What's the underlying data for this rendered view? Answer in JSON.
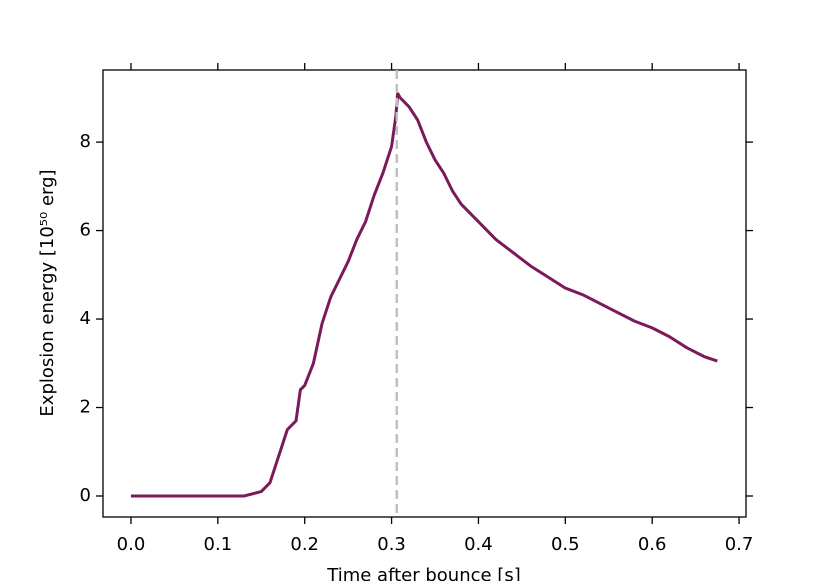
{
  "chart_data": {
    "type": "line",
    "xlabel": "Time after bounce [s]",
    "ylabel": "Explosion energy [10⁵⁰ erg]",
    "x": [
      0,
      0.05,
      0.1,
      0.13,
      0.15,
      0.16,
      0.17,
      0.18,
      0.19,
      0.195,
      0.2,
      0.21,
      0.22,
      0.23,
      0.24,
      0.25,
      0.26,
      0.27,
      0.28,
      0.29,
      0.3,
      0.305,
      0.307,
      0.31,
      0.32,
      0.33,
      0.34,
      0.35,
      0.36,
      0.37,
      0.38,
      0.4,
      0.42,
      0.44,
      0.46,
      0.48,
      0.5,
      0.52,
      0.54,
      0.56,
      0.58,
      0.6,
      0.62,
      0.64,
      0.66,
      0.675
    ],
    "series": [
      {
        "color": "#7b1a5a",
        "values": [
          0,
          0,
          0,
          0,
          0.1,
          0.3,
          0.9,
          1.5,
          1.7,
          2.4,
          2.5,
          3.0,
          3.9,
          4.5,
          4.9,
          5.3,
          5.8,
          6.2,
          6.8,
          7.3,
          7.9,
          8.6,
          9.1,
          9.0,
          8.8,
          8.5,
          8.0,
          7.6,
          7.3,
          6.9,
          6.6,
          6.2,
          5.8,
          5.5,
          5.2,
          4.95,
          4.7,
          4.55,
          4.35,
          4.15,
          3.95,
          3.8,
          3.6,
          3.35,
          3.15,
          3.05
        ]
      }
    ],
    "vline": {
      "value": 0.306,
      "color": "#c0c0c0"
    },
    "xlim": [
      -0.0322,
      0.708
    ],
    "ylim": [
      -0.475,
      9.63
    ],
    "xticks": [
      {
        "value": 0,
        "label": "0.0"
      },
      0.1,
      0.2,
      0.3,
      0.4,
      0.5,
      0.6,
      0.7
    ],
    "yticks": [
      0,
      2,
      4,
      6,
      8
    ]
  }
}
